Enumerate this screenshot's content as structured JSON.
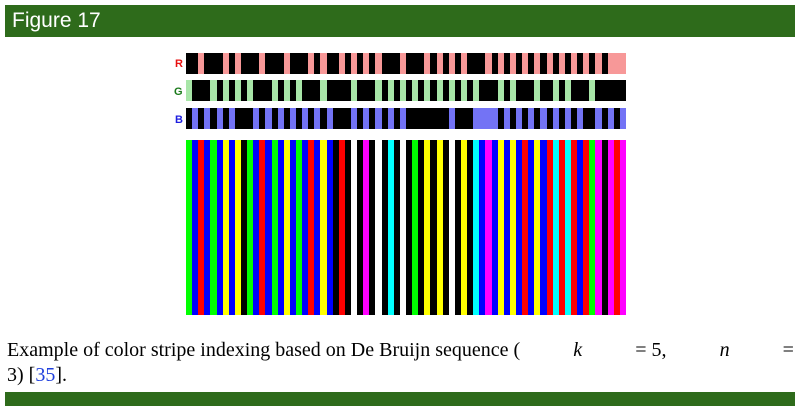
{
  "figure": {
    "label": "Figure 17",
    "channels": [
      {
        "name": "R",
        "color": "#e81010",
        "on_color": "#f79898",
        "off_color": "#000000",
        "pattern": "001000101000100010001010010101010001000101010100010101010101010101010111"
      },
      {
        "name": "G",
        "color": "#1a7a1a",
        "on_color": "#a8e6a8",
        "off_color": "#000000",
        "pattern": "100010101010001010100010000100010101010101010101000101000100101000100000"
      },
      {
        "name": "B",
        "color": "#1e1ee0",
        "on_color": "#7373f5",
        "off_color": "#000000",
        "pattern": "010101010001010101010101000101010101000000010001111010101010101010010101"
      }
    ],
    "stripe_palette": {
      "0": "#000000",
      "1": "#0000ff",
      "2": "#00ff00",
      "3": "#00ffff",
      "4": "#ff0000",
      "5": "#ff00ff",
      "6": "#ffff00",
      "7": "#ffffff"
    }
  },
  "caption": {
    "text_before": "Example of color stripe indexing based on De Bruijn sequence (",
    "k_var": "k",
    "k_eq": " = 5, ",
    "n_var": "n",
    "n_eq": " =",
    "line2_value": "3) [",
    "citation": "35",
    "line2_end": "]."
  }
}
